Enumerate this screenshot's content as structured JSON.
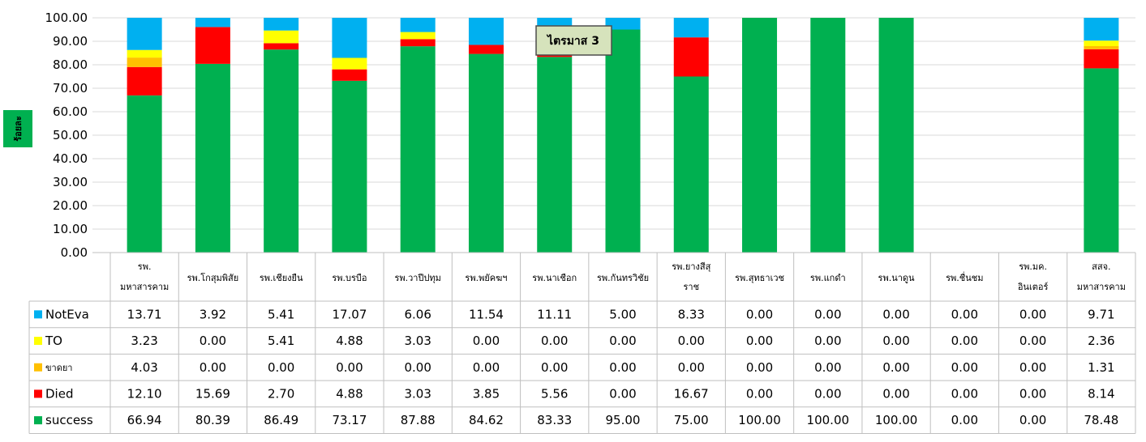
{
  "chart_data": {
    "type": "bar",
    "stacked": true,
    "ylabel": "ร้อยละ",
    "ylim": [
      0,
      100
    ],
    "yticks": [
      "0.00",
      "10.00",
      "20.00",
      "30.00",
      "40.00",
      "50.00",
      "60.00",
      "70.00",
      "80.00",
      "90.00",
      "100.00"
    ],
    "annotation": "ไตรมาส 3",
    "grid": true,
    "data_table": true,
    "categories": [
      [
        "รพ.",
        "มหาสารคาม"
      ],
      [
        "รพ.โกสุมพิสัย"
      ],
      [
        "รพ.เชียงยืน"
      ],
      [
        "รพ.บรบือ"
      ],
      [
        "รพ.วาปีปทุม"
      ],
      [
        "รพ.พยัคฆฯ"
      ],
      [
        "รพ.นาเชือก"
      ],
      [
        "รพ.กันทรวิชัย"
      ],
      [
        "รพ.ยางสีสุ",
        "ราช"
      ],
      [
        "รพ.สุทธาเวช"
      ],
      [
        "รพ.แกดำ"
      ],
      [
        "รพ.นาดูน"
      ],
      [
        "รพ.ชื่นชม"
      ],
      [
        "รพ.มค.",
        "อินเตอร์"
      ],
      [
        "สสจ.",
        "มหาสารคาม"
      ]
    ],
    "series": [
      {
        "name": "success",
        "color": "#00b050",
        "values": [
          66.94,
          80.39,
          86.49,
          73.17,
          87.88,
          84.62,
          83.33,
          95.0,
          75.0,
          100.0,
          100.0,
          100.0,
          0.0,
          0.0,
          78.48
        ],
        "labels": [
          "66.94",
          "80.39",
          "86.49",
          "73.17",
          "87.88",
          "84.62",
          "83.33",
          "95.00",
          "75.00",
          "100.00",
          "100.00",
          "100.00",
          "0.00",
          "0.00",
          "78.48"
        ]
      },
      {
        "name": "Died",
        "color": "#ff0000",
        "values": [
          12.1,
          15.69,
          2.7,
          4.88,
          3.03,
          3.85,
          5.56,
          0.0,
          16.67,
          0.0,
          0.0,
          0.0,
          0.0,
          0.0,
          8.14
        ],
        "labels": [
          "12.10",
          "15.69",
          "2.70",
          "4.88",
          "3.03",
          "3.85",
          "5.56",
          "0.00",
          "16.67",
          "0.00",
          "0.00",
          "0.00",
          "0.00",
          "0.00",
          "8.14"
        ]
      },
      {
        "name": "ขาดยา",
        "color": "#ffc000",
        "values": [
          4.03,
          0.0,
          0.0,
          0.0,
          0.0,
          0.0,
          0.0,
          0.0,
          0.0,
          0.0,
          0.0,
          0.0,
          0.0,
          0.0,
          1.31
        ],
        "labels": [
          "4.03",
          "0.00",
          "0.00",
          "0.00",
          "0.00",
          "0.00",
          "0.00",
          "0.00",
          "0.00",
          "0.00",
          "0.00",
          "0.00",
          "0.00",
          "0.00",
          "1.31"
        ]
      },
      {
        "name": "TO",
        "color": "#ffff00",
        "values": [
          3.23,
          0.0,
          5.41,
          4.88,
          3.03,
          0.0,
          0.0,
          0.0,
          0.0,
          0.0,
          0.0,
          0.0,
          0.0,
          0.0,
          2.36
        ],
        "labels": [
          "3.23",
          "0.00",
          "5.41",
          "4.88",
          "3.03",
          "0.00",
          "0.00",
          "0.00",
          "0.00",
          "0.00",
          "0.00",
          "0.00",
          "0.00",
          "0.00",
          "2.36"
        ]
      },
      {
        "name": "NotEva",
        "color": "#00b0f0",
        "values": [
          13.71,
          3.92,
          5.41,
          17.07,
          6.06,
          11.54,
          11.11,
          5.0,
          8.33,
          0.0,
          0.0,
          0.0,
          0.0,
          0.0,
          9.71
        ],
        "labels": [
          "13.71",
          "3.92",
          "5.41",
          "17.07",
          "6.06",
          "11.54",
          "11.11",
          "5.00",
          "8.33",
          "0.00",
          "0.00",
          "0.00",
          "0.00",
          "0.00",
          "9.71"
        ]
      }
    ]
  }
}
